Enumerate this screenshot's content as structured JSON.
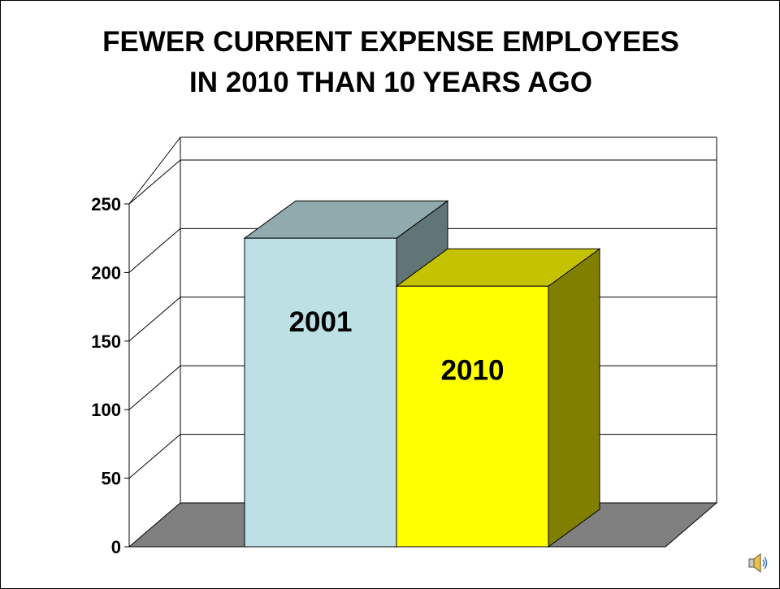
{
  "slide": {
    "title_line1": "FEWER CURRENT EXPENSE EMPLOYEES",
    "title_line2": "IN 2010 THAN 10 YEARS AGO"
  },
  "speaker_icon": "speaker-icon",
  "chart_data": {
    "type": "bar",
    "title": "FEWER CURRENT EXPENSE EMPLOYEES IN 2010 THAN 10 YEARS AGO",
    "categories": [
      "2001",
      "2010"
    ],
    "values": [
      225,
      190
    ],
    "ylim": [
      0,
      250
    ],
    "yticks": [
      "0",
      "50",
      "100",
      "150",
      "200",
      "250"
    ],
    "grid": true,
    "legend": "none",
    "three_d": true,
    "colors": {
      "2001": {
        "front": "#bce0e4",
        "top": "#90aaad",
        "side": "#617576"
      },
      "2010": {
        "front": "#ffff00",
        "top": "#c5c300",
        "side": "#807f00"
      },
      "floor": "#808080"
    }
  }
}
